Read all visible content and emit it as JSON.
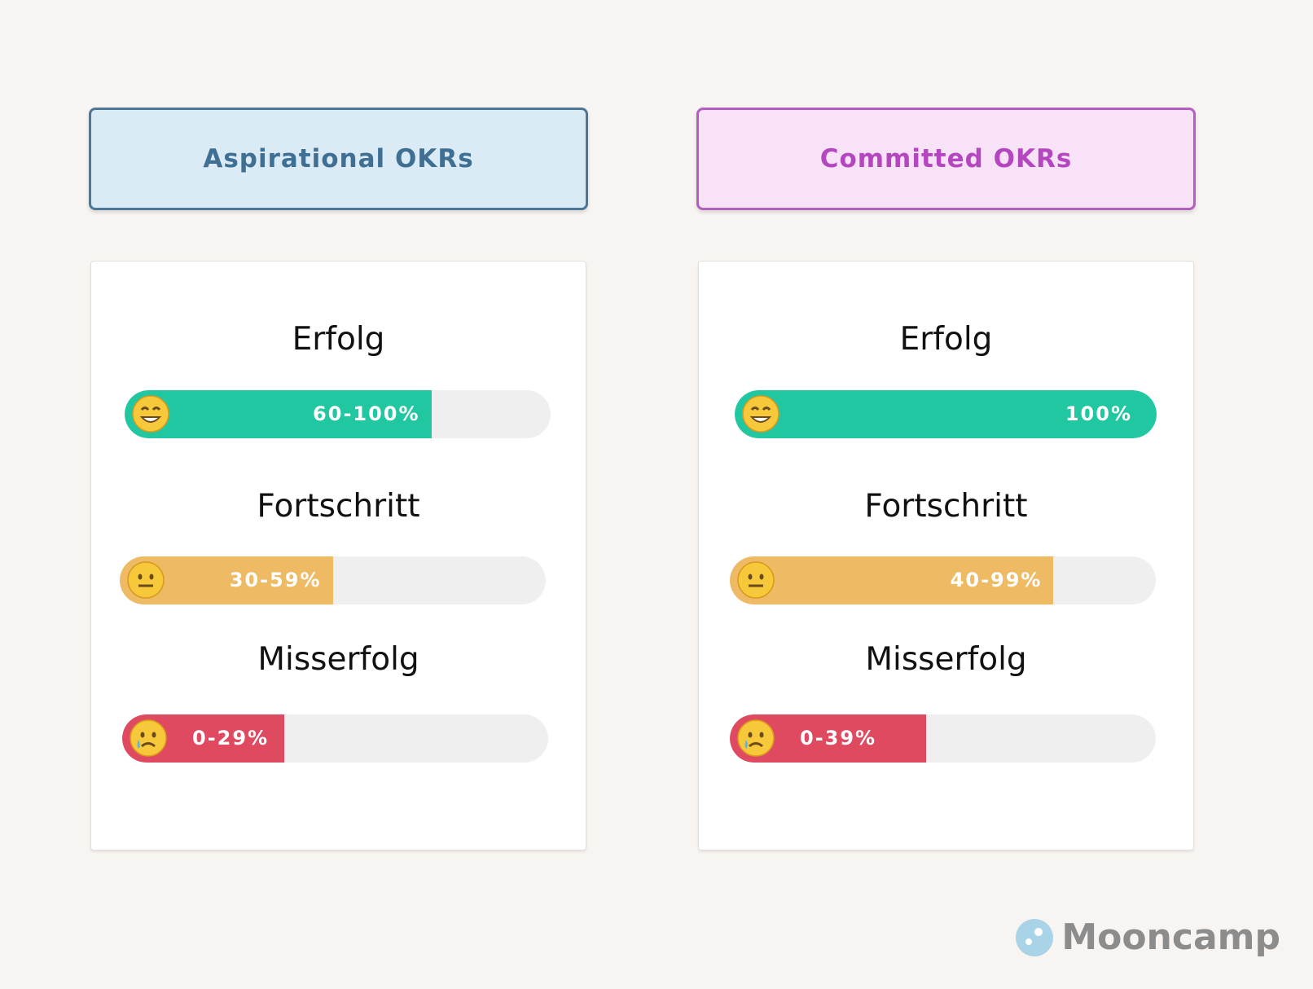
{
  "columns": [
    {
      "header": "Aspirational OKRs",
      "levels": [
        {
          "label": "Erfolg",
          "range": "60-100%"
        },
        {
          "label": "Fortschritt",
          "range": "30-59%"
        },
        {
          "label": "Misserfolg",
          "range": "0-29%"
        }
      ]
    },
    {
      "header": "Committed OKRs",
      "levels": [
        {
          "label": "Erfolg",
          "range": "100%"
        },
        {
          "label": "Fortschritt",
          "range": "40-99%"
        },
        {
          "label": "Misserfolg",
          "range": "0-39%"
        }
      ]
    }
  ],
  "logo": "Mooncamp"
}
